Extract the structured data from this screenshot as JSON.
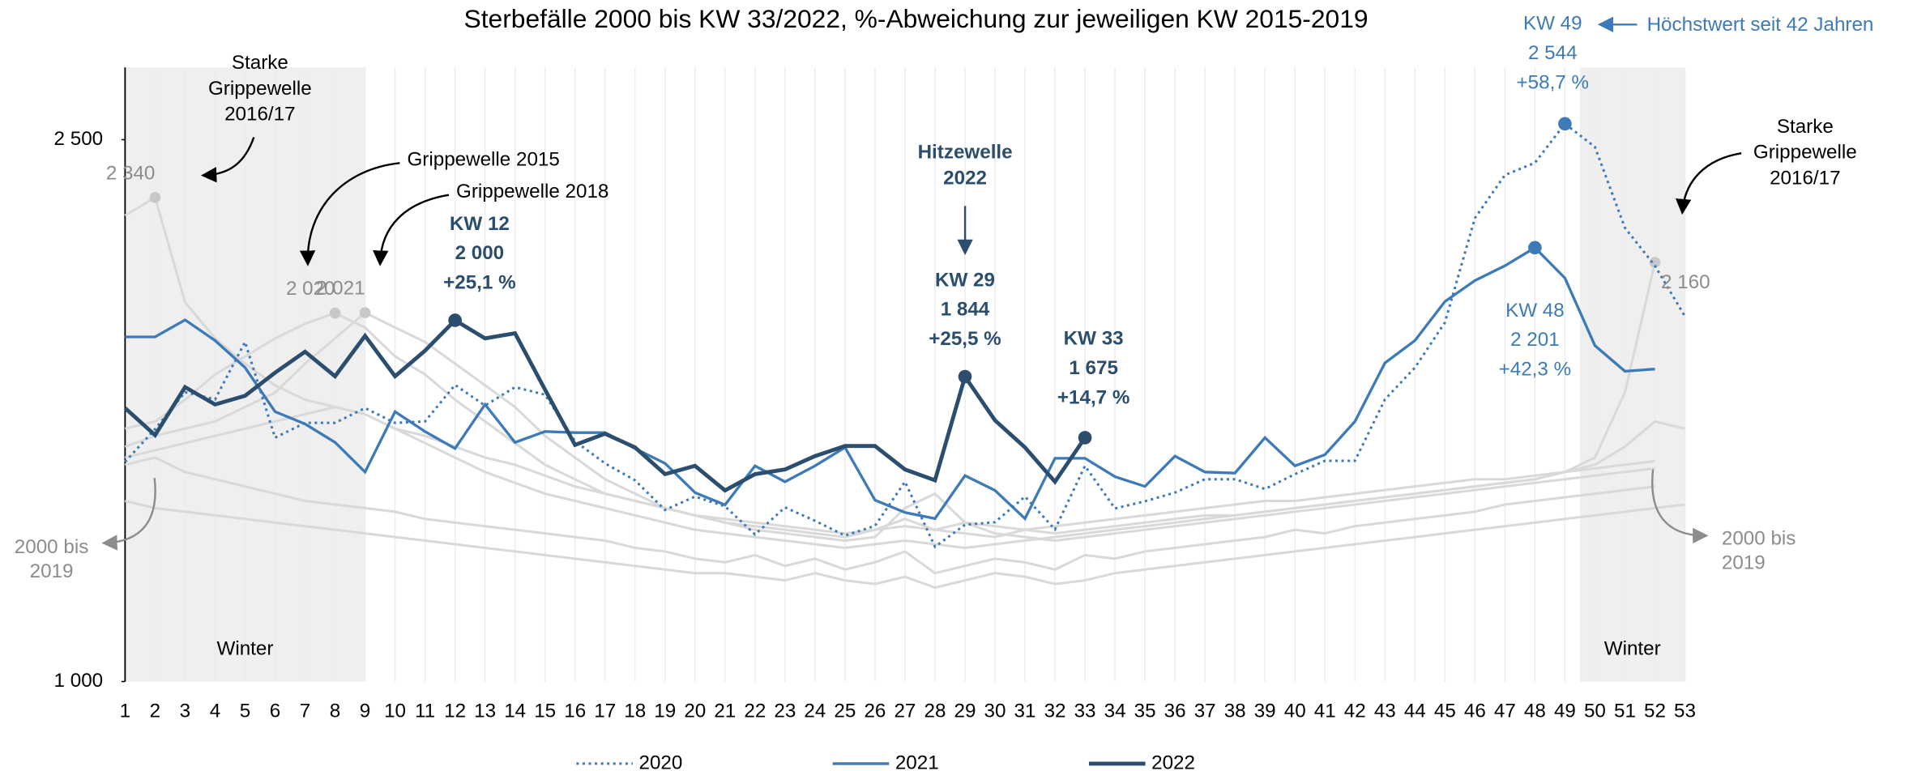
{
  "chart_data": {
    "type": "line",
    "title": "Sterbefälle 2000 bis KW 33/2022, %-Abweichung zur jeweiligen KW 2015-2019",
    "x": [
      1,
      2,
      3,
      4,
      5,
      6,
      7,
      8,
      9,
      10,
      11,
      12,
      13,
      14,
      15,
      16,
      17,
      18,
      19,
      20,
      21,
      22,
      23,
      24,
      25,
      26,
      27,
      28,
      29,
      30,
      31,
      32,
      33,
      34,
      35,
      36,
      37,
      38,
      39,
      40,
      41,
      42,
      43,
      44,
      45,
      46,
      47,
      48,
      49,
      50,
      51,
      52,
      53
    ],
    "xlim": [
      1,
      53
    ],
    "ylim": [
      1000,
      2700
    ],
    "yticks": [
      {
        "value": 1000,
        "label": "1 000"
      },
      {
        "value": 2500,
        "label": "2 500"
      }
    ],
    "shaded": [
      {
        "from": 1,
        "to": 9,
        "label": "Winter"
      },
      {
        "from": 50,
        "to": 53,
        "label": "Winter"
      }
    ],
    "background_color": "#d9d9d9",
    "background_series": [
      {
        "values": [
          2290,
          2340,
          2050,
          1950,
          1880,
          1820,
          1780,
          1760,
          1740,
          1700,
          1680,
          1650,
          1620,
          1600,
          1570,
          1540,
          1520,
          1500,
          1480,
          1460,
          1450,
          1440,
          1430,
          1420,
          1410,
          1420,
          1430,
          1420,
          1440,
          1430,
          1420,
          1410,
          1420,
          1430,
          1440,
          1450,
          1460,
          1460,
          1470,
          1480,
          1490,
          1500,
          1510,
          1520,
          1530,
          1540,
          1550,
          1560,
          1580,
          1600,
          1650,
          1720,
          1700
        ],
        "peak_labels": [
          {
            "week": 2,
            "label": "2 340"
          }
        ]
      },
      {
        "values": [
          1620,
          1640,
          1660,
          1680,
          1700,
          1720,
          1740,
          1760,
          1740,
          1700,
          1660,
          1620,
          1580,
          1550,
          1520,
          1500,
          1480,
          1460,
          1440,
          1420,
          1410,
          1400,
          1390,
          1380,
          1370,
          1380,
          1390,
          1380,
          1370,
          1380,
          1390,
          1400,
          1410,
          1420,
          1430,
          1440,
          1450,
          1460,
          1470,
          1480,
          1490,
          1500,
          1510,
          1520,
          1530,
          1540,
          1550,
          1560,
          1580,
          1620,
          1800,
          2160,
          null
        ],
        "peak_labels": [
          {
            "week": 52,
            "label": "2 160"
          }
        ]
      },
      {
        "values": [
          1700,
          1720,
          1780,
          1850,
          1900,
          1950,
          1990,
          2020,
          1980,
          1900,
          1850,
          1780,
          1720,
          1660,
          1600,
          1560,
          1520,
          1500,
          1480,
          1460,
          1440,
          1430,
          1420,
          1410,
          1400,
          1420,
          1450,
          1420,
          1410,
          1400,
          1420,
          1430,
          1440,
          1450,
          1460,
          1470,
          1480,
          1490,
          1500,
          1500,
          1510,
          1520,
          1530,
          1540,
          1550,
          1560,
          1560,
          1570,
          1580,
          1590,
          1600,
          1610,
          null
        ],
        "peak_labels": [
          {
            "week": 8,
            "label": "2 020"
          }
        ]
      },
      {
        "values": [
          1650,
          1680,
          1700,
          1720,
          1760,
          1800,
          1880,
          1950,
          2021,
          1980,
          1940,
          1880,
          1820,
          1760,
          1680,
          1620,
          1560,
          1520,
          1480,
          1460,
          1440,
          1420,
          1410,
          1400,
          1390,
          1400,
          1480,
          1520,
          1440,
          1410,
          1400,
          1390,
          1400,
          1410,
          1420,
          1430,
          1440,
          1450,
          1460,
          1470,
          1480,
          1490,
          1500,
          1510,
          1520,
          1530,
          1540,
          1550,
          1560,
          1570,
          1580,
          1590,
          null
        ],
        "peak_labels": [
          {
            "week": 9,
            "label": "2 021"
          }
        ]
      },
      {
        "values": [
          1500,
          1480,
          1470,
          1460,
          1450,
          1440,
          1430,
          1420,
          1410,
          1400,
          1390,
          1380,
          1370,
          1360,
          1350,
          1340,
          1330,
          1320,
          1310,
          1300,
          1300,
          1290,
          1280,
          1300,
          1280,
          1270,
          1290,
          1260,
          1280,
          1300,
          1290,
          1270,
          1280,
          1300,
          1310,
          1320,
          1330,
          1340,
          1350,
          1360,
          1370,
          1380,
          1390,
          1400,
          1410,
          1420,
          1430,
          1440,
          1450,
          1460,
          1470,
          1480,
          1490
        ],
        "peak_labels": []
      },
      {
        "values": [
          1600,
          1620,
          1580,
          1560,
          1540,
          1520,
          1500,
          1490,
          1480,
          1470,
          1450,
          1440,
          1430,
          1420,
          1410,
          1400,
          1390,
          1370,
          1360,
          1340,
          1330,
          1350,
          1320,
          1340,
          1310,
          1330,
          1360,
          1300,
          1320,
          1340,
          1330,
          1310,
          1350,
          1340,
          1360,
          1370,
          1380,
          1390,
          1400,
          1420,
          1410,
          1430,
          1440,
          1450,
          1460,
          1470,
          1490,
          1500,
          1510,
          1520,
          1530,
          1540,
          null
        ],
        "peak_labels": []
      }
    ],
    "series": [
      {
        "name": "2020",
        "color": "#3d7ab8",
        "dash": true,
        "values": [
          1608,
          1699,
          1801,
          1781,
          1940,
          1675,
          1716,
          1716,
          1757,
          1716,
          1720,
          1821,
          1764,
          1815,
          1794,
          1665,
          1604,
          1557,
          1475,
          1512,
          1485,
          1407,
          1482,
          1445,
          1404,
          1431,
          1553,
          1373,
          1434,
          1441,
          1512,
          1421,
          1597,
          1479,
          1499,
          1523,
          1560,
          1560,
          1533,
          1574,
          1611,
          1611,
          1781,
          1869,
          1994,
          2283,
          2402,
          2436,
          2544,
          2480,
          2256,
          2151,
          2011
        ],
        "callouts": [
          {
            "week": 49,
            "week_label": "KW 49",
            "value_label": "2 544",
            "change": "+58,7 %"
          }
        ]
      },
      {
        "name": "2021",
        "color": "#3d7ab8",
        "dash": false,
        "values": [
          1954,
          1954,
          2001,
          1944,
          1869,
          1747,
          1713,
          1662,
          1580,
          1747,
          1692,
          1645,
          1767,
          1662,
          1692,
          1689,
          1689,
          1645,
          1604,
          1523,
          1489,
          1597,
          1553,
          1597,
          1648,
          1502,
          1468,
          1451,
          1570,
          1529,
          1451,
          1618,
          1618,
          1567,
          1540,
          1624,
          1580,
          1577,
          1675,
          1597,
          1628,
          1720,
          1882,
          1944,
          2052,
          2110,
          2151,
          2201,
          2117,
          1930,
          1859,
          1865,
          null
        ],
        "callouts": [
          {
            "week": 48,
            "week_label": "KW 48",
            "value_label": "2 201",
            "change": "+42,3 %"
          }
        ]
      },
      {
        "name": "2022",
        "color": "#2c4e6e",
        "dash": false,
        "values": [
          1757,
          1682,
          1815,
          1767,
          1791,
          1855,
          1913,
          1845,
          1957,
          1845,
          1916,
          2000,
          1950,
          1964,
          1808,
          1655,
          1686,
          1648,
          1574,
          1597,
          1529,
          1574,
          1587,
          1624,
          1652,
          1652,
          1587,
          1557,
          1844,
          1723,
          1648,
          1553,
          1675,
          null,
          null,
          null,
          null,
          null,
          null,
          null,
          null,
          null,
          null,
          null,
          null,
          null,
          null,
          null,
          null,
          null,
          null,
          null,
          null
        ],
        "callouts": [
          {
            "week": 12,
            "week_label": "KW 12",
            "value_label": "2 000",
            "change": "+25,1 %"
          },
          {
            "week": 29,
            "week_label": "KW 29",
            "value_label": "1 844",
            "change": "+25,5 %"
          },
          {
            "week": 33,
            "week_label": "KW 33",
            "value_label": "1 675",
            "change": "+14,7 %"
          }
        ]
      }
    ],
    "annotations": {
      "flu_left": [
        "Starke",
        "Grippewelle",
        "2016/17"
      ],
      "flu_right": [
        "Starke",
        "Grippewelle",
        "2016/17"
      ],
      "flu_2015": "Grippewelle 2015",
      "flu_2018": "Grippewelle 2018",
      "heat": [
        "Hitzewelle",
        "2022"
      ],
      "range_left": [
        "2000 bis",
        "2019"
      ],
      "range_right": [
        "2000 bis",
        "2019"
      ],
      "record": "Höchstwert seit 42 Jahren"
    }
  }
}
